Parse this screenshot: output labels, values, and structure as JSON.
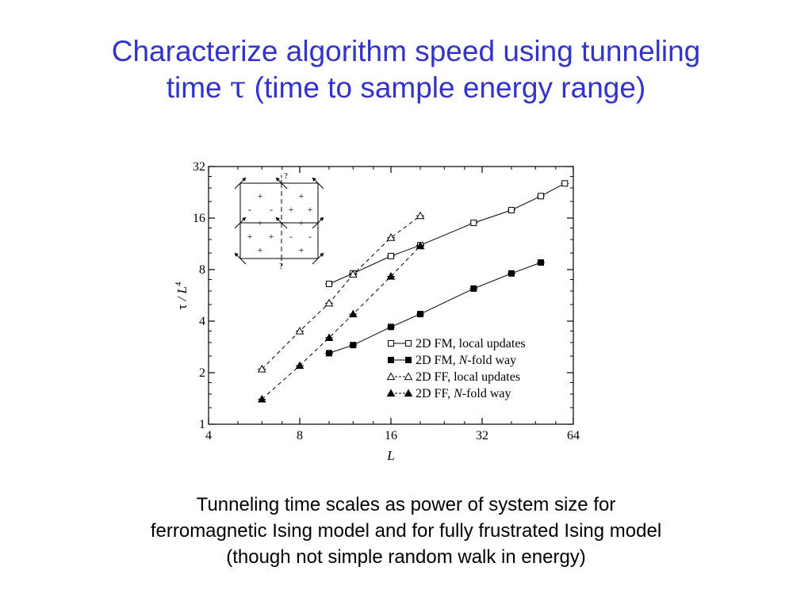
{
  "slide": {
    "title_line1": "Characterize algorithm speed using tunneling",
    "title_line2_pre": "time ",
    "title_tau": "τ",
    "title_line2_post": " (time to sample energy range)",
    "caption_lines": [
      "Tunneling time scales as power of system size for",
      "ferromagnetic Ising model and for fully frustrated Ising model",
      "(though not simple random walk in energy)"
    ],
    "colors": {
      "title": "#3333cc",
      "text": "#000000"
    }
  },
  "chart_data": {
    "type": "scatter",
    "x_scale": "log2",
    "y_scale": "log2",
    "xlim": [
      4,
      64
    ],
    "ylim": [
      1,
      32
    ],
    "xticks": [
      "4",
      "8",
      "16",
      "32",
      "64"
    ],
    "yticks": [
      "1",
      "2",
      "4",
      "8",
      "16",
      "32"
    ],
    "xlabel": "L",
    "ylabel_tau": "τ",
    "ylabel_rest": " / L",
    "ylabel_sup": "4",
    "legend_position": "lower-right",
    "series": [
      {
        "name": "2D FM, local updates",
        "legend": [
          "2D FM, local updates"
        ],
        "marker": "square-open",
        "line": "solid",
        "x": [
          10,
          12,
          16,
          20,
          30,
          40,
          50,
          60
        ],
        "y": [
          6.6,
          7.6,
          9.6,
          11.1,
          15,
          17.8,
          21.5,
          25.5
        ]
      },
      {
        "name": "2D FM, N-fold way",
        "legend": [
          "2D FM, ",
          "N",
          "-fold way"
        ],
        "marker": "square-filled",
        "line": "solid",
        "x": [
          10,
          12,
          16,
          20,
          30,
          40,
          50
        ],
        "y": [
          2.6,
          2.9,
          3.7,
          4.4,
          6.2,
          7.6,
          8.8
        ]
      },
      {
        "name": "2D FF, local updates",
        "legend": [
          "2D FF, local updates"
        ],
        "marker": "triangle-open",
        "line": "dashed",
        "x": [
          6,
          8,
          10,
          12,
          16,
          20
        ],
        "y": [
          2.1,
          3.5,
          5.1,
          7.5,
          12.3,
          16.5
        ]
      },
      {
        "name": "2D FF, N-fold way",
        "legend": [
          "2D FF, ",
          "N",
          "-fold way"
        ],
        "marker": "triangle-filled",
        "line": "dashed",
        "x": [
          6,
          8,
          10,
          12,
          16,
          20
        ],
        "y": [
          1.4,
          2.2,
          3.2,
          4.4,
          7.3,
          11
        ]
      }
    ],
    "inset": {
      "question_marks": [
        "?",
        "?"
      ],
      "signs": [
        "+",
        "+",
        "-",
        "-",
        "+",
        "+",
        "+",
        "+",
        "+",
        "+",
        "-",
        "-",
        "+",
        "+",
        "+",
        "+"
      ]
    }
  }
}
